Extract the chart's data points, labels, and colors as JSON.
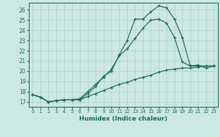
{
  "xlabel": "Humidex (Indice chaleur)",
  "bg_color": "#cce8e0",
  "grid_color": "#aacfc8",
  "line_color": "#1a6b5a",
  "xlim": [
    -0.5,
    23.5
  ],
  "ylim": [
    16.5,
    26.7
  ],
  "xticks": [
    0,
    1,
    2,
    3,
    4,
    5,
    6,
    7,
    8,
    9,
    10,
    11,
    12,
    13,
    14,
    15,
    16,
    17,
    18,
    19,
    20,
    21,
    22,
    23
  ],
  "yticks": [
    17,
    18,
    19,
    20,
    21,
    22,
    23,
    24,
    25,
    26
  ],
  "line1_x": [
    0,
    1,
    2,
    3,
    4,
    5,
    6,
    7,
    8,
    9,
    10,
    11,
    12,
    13,
    14,
    15,
    16,
    17,
    18,
    19,
    20,
    21,
    22,
    23
  ],
  "line1_y": [
    17.7,
    17.45,
    17.0,
    17.1,
    17.2,
    17.2,
    17.2,
    17.8,
    18.5,
    19.5,
    20.0,
    21.6,
    23.0,
    25.1,
    25.1,
    25.8,
    26.4,
    26.2,
    25.1,
    23.3,
    20.5,
    20.6,
    20.3,
    20.5
  ],
  "line2_x": [
    0,
    1,
    2,
    3,
    4,
    5,
    6,
    7,
    8,
    9,
    10,
    11,
    12,
    13,
    14,
    15,
    16,
    17,
    18,
    19,
    20,
    21,
    22,
    23
  ],
  "line2_y": [
    17.7,
    17.45,
    17.0,
    17.1,
    17.2,
    17.2,
    17.3,
    18.0,
    18.7,
    19.4,
    20.2,
    21.5,
    22.2,
    23.2,
    24.2,
    25.0,
    25.1,
    24.7,
    23.3,
    20.9,
    20.5,
    20.5,
    20.5,
    20.5
  ],
  "line3_x": [
    0,
    1,
    2,
    3,
    4,
    5,
    6,
    7,
    8,
    9,
    10,
    11,
    12,
    13,
    14,
    15,
    16,
    17,
    18,
    19,
    20,
    21,
    22,
    23
  ],
  "line3_y": [
    17.7,
    17.45,
    17.0,
    17.1,
    17.2,
    17.2,
    17.2,
    17.5,
    17.8,
    18.1,
    18.4,
    18.7,
    18.9,
    19.2,
    19.4,
    19.6,
    19.9,
    20.1,
    20.2,
    20.3,
    20.3,
    20.4,
    20.5,
    20.5
  ]
}
